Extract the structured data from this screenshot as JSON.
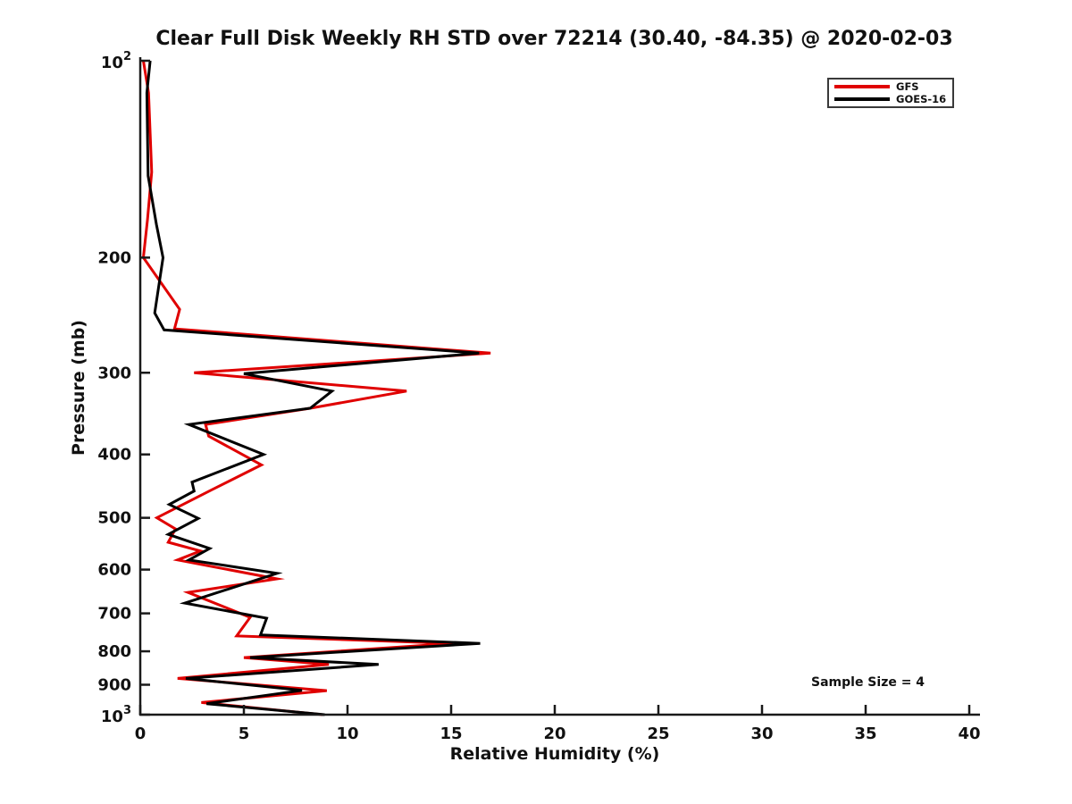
{
  "title": "Clear Full Disk Weekly RH STD over 72214 (30.40, -84.35) @ 2020-02-03",
  "colors": {
    "gfs_red": "#e00000",
    "goes_black": "#000000",
    "axis": "#1a1a1a",
    "legend_border": "#3a3a3a",
    "background": "#ffffff"
  },
  "legend": {
    "position": "top-right",
    "items": [
      {
        "label": "GFS",
        "color": "#e00000"
      },
      {
        "label": "GOES-16",
        "color": "#000000"
      }
    ]
  },
  "chart_data": {
    "type": "line",
    "title": "Clear Full Disk Weekly RH STD over 72214 (30.40, -84.35) @ 2020-02-03",
    "xlabel": "Relative Humidity (%)",
    "ylabel": "Pressure (mb)",
    "annotation": "Sample Size = 4",
    "xlim": [
      0,
      40
    ],
    "ylim": [
      100,
      1000
    ],
    "yscale": "log",
    "y_inverted_top_low": true,
    "grid": false,
    "xticks": [
      0,
      5,
      10,
      15,
      20,
      25,
      30,
      35,
      40
    ],
    "yticks": [
      100,
      200,
      300,
      400,
      500,
      600,
      700,
      800,
      900,
      1000
    ],
    "ytick_labels": [
      "10^2",
      "200",
      "300",
      "400",
      "500",
      "600",
      "700",
      "800",
      "900",
      "10^3"
    ],
    "series": [
      {
        "name": "GFS",
        "color": "#e00000",
        "points_pressure_mb_vs_rh_std": [
          [
            100,
            0.15
          ],
          [
            112,
            0.4
          ],
          [
            148,
            0.55
          ],
          [
            175,
            0.35
          ],
          [
            200,
            0.15
          ],
          [
            240,
            1.9
          ],
          [
            257,
            1.65
          ],
          [
            280,
            16.9
          ],
          [
            300,
            2.6
          ],
          [
            320,
            12.85
          ],
          [
            340,
            8.2
          ],
          [
            360,
            3.15
          ],
          [
            375,
            3.3
          ],
          [
            415,
            5.85
          ],
          [
            453,
            3.45
          ],
          [
            500,
            0.8
          ],
          [
            520,
            1.7
          ],
          [
            545,
            1.35
          ],
          [
            562,
            2.9
          ],
          [
            580,
            1.8
          ],
          [
            620,
            6.6
          ],
          [
            650,
            2.3
          ],
          [
            710,
            5.3
          ],
          [
            758,
            4.65
          ],
          [
            778,
            15.1
          ],
          [
            818,
            5.0
          ],
          [
            838,
            9.1
          ],
          [
            880,
            1.8
          ],
          [
            919,
            9.0
          ],
          [
            958,
            2.95
          ],
          [
            1000,
            8.8
          ]
        ]
      },
      {
        "name": "GOES-16",
        "color": "#000000",
        "points_pressure_mb_vs_rh_std": [
          [
            100,
            0.48
          ],
          [
            112,
            0.32
          ],
          [
            150,
            0.38
          ],
          [
            178,
            0.78
          ],
          [
            200,
            1.1
          ],
          [
            243,
            0.7
          ],
          [
            258,
            1.15
          ],
          [
            280,
            16.35
          ],
          [
            301,
            5.0
          ],
          [
            320,
            9.25
          ],
          [
            340,
            8.2
          ],
          [
            360,
            2.35
          ],
          [
            400,
            5.95
          ],
          [
            441,
            2.5
          ],
          [
            455,
            2.6
          ],
          [
            477,
            1.4
          ],
          [
            501,
            2.8
          ],
          [
            530,
            1.35
          ],
          [
            557,
            3.35
          ],
          [
            580,
            2.35
          ],
          [
            608,
            6.6
          ],
          [
            675,
            2.15
          ],
          [
            712,
            6.1
          ],
          [
            755,
            5.8
          ],
          [
            778,
            16.4
          ],
          [
            818,
            5.3
          ],
          [
            838,
            11.5
          ],
          [
            880,
            2.2
          ],
          [
            918,
            7.8
          ],
          [
            962,
            3.2
          ],
          [
            1000,
            8.9
          ]
        ]
      }
    ]
  }
}
